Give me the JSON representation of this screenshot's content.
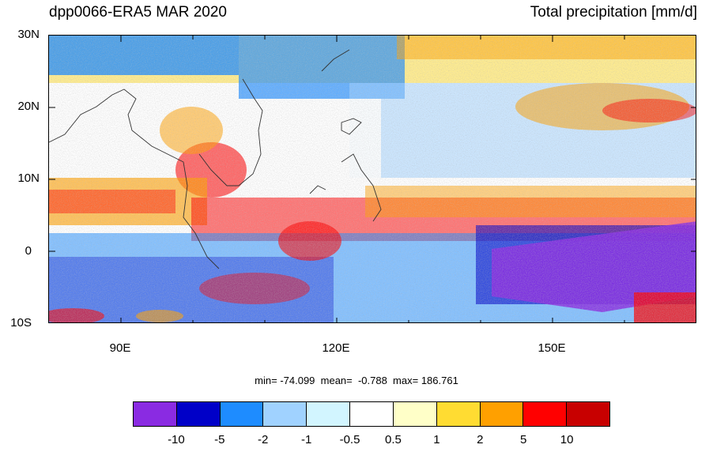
{
  "title_left": "dpp0066-ERA5 MAR 2020",
  "title_right": "Total precipitation [mm/d]",
  "map": {
    "lon_range": [
      80,
      170
    ],
    "lat_range": [
      -10,
      30
    ],
    "lat_labels": [
      "30N",
      "20N",
      "10N",
      "0",
      "10S"
    ],
    "lon_labels": [
      "90E",
      "120E",
      "150E"
    ]
  },
  "stats": "min= -74.099  mean=  -0.788  max= 186.761",
  "colorbar": {
    "colors": [
      "#8a2be2",
      "#0000c8",
      "#1e8cff",
      "#a0d2ff",
      "#d2f5ff",
      "#ffffff",
      "#ffffc8",
      "#ffdc32",
      "#ffa000",
      "#ff0000",
      "#c80000"
    ],
    "labels": [
      "-10",
      "-5",
      "-2",
      "-1",
      "-0.5",
      "0.5",
      "1",
      "2",
      "5",
      "10"
    ]
  }
}
